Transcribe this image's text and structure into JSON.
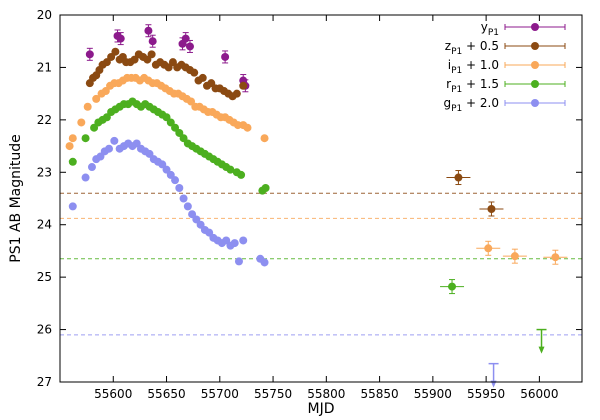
{
  "chart_data": {
    "type": "scatter",
    "xlabel": "MJD",
    "ylabel": "PS1 AB Magnitude",
    "xlim": [
      55550,
      56040
    ],
    "ylim": [
      27,
      20
    ],
    "xticks": [
      "55600",
      "55650",
      "55700",
      "55750",
      "55800",
      "55850",
      "55900",
      "55950",
      "56000"
    ],
    "yticks": [
      "20",
      "21",
      "22",
      "23",
      "24",
      "25",
      "26",
      "27"
    ],
    "legend_position": "top-right",
    "series": [
      {
        "name": "y_P1",
        "label_main": "y",
        "label_sub": "P1",
        "label_suffix": "",
        "color": "#8c1a8c",
        "limit_mag": null,
        "points": [
          [
            55578,
            20.75
          ],
          [
            55604,
            20.4
          ],
          [
            55607,
            20.45
          ],
          [
            55633,
            20.3
          ],
          [
            55637,
            20.5
          ],
          [
            55665,
            20.55
          ],
          [
            55668,
            20.45
          ],
          [
            55672,
            20.6
          ],
          [
            55705,
            20.8
          ],
          [
            55722,
            21.25
          ],
          [
            55724,
            21.35
          ]
        ],
        "upper_limits": []
      },
      {
        "name": "z_P1 + 0.5",
        "label_main": "z",
        "label_sub": "P1",
        "label_suffix": " + 0.5",
        "color": "#8b4a12",
        "limit_mag": 23.4,
        "points": [
          [
            55578,
            21.3
          ],
          [
            55581,
            21.2
          ],
          [
            55584,
            21.15
          ],
          [
            55587,
            21.05
          ],
          [
            55590,
            20.95
          ],
          [
            55594,
            20.9
          ],
          [
            55598,
            20.8
          ],
          [
            55602,
            20.7
          ],
          [
            55606,
            20.85
          ],
          [
            55609,
            20.8
          ],
          [
            55612,
            20.9
          ],
          [
            55616,
            20.9
          ],
          [
            55620,
            20.85
          ],
          [
            55624,
            20.75
          ],
          [
            55628,
            20.8
          ],
          [
            55632,
            20.85
          ],
          [
            55636,
            20.75
          ],
          [
            55640,
            20.95
          ],
          [
            55644,
            20.9
          ],
          [
            55648,
            20.95
          ],
          [
            55652,
            21.0
          ],
          [
            55656,
            20.9
          ],
          [
            55660,
            21.0
          ],
          [
            55664,
            20.95
          ],
          [
            55668,
            21.0
          ],
          [
            55672,
            21.05
          ],
          [
            55676,
            21.1
          ],
          [
            55680,
            21.25
          ],
          [
            55684,
            21.2
          ],
          [
            55688,
            21.35
          ],
          [
            55692,
            21.3
          ],
          [
            55696,
            21.4
          ],
          [
            55700,
            21.4
          ],
          [
            55704,
            21.45
          ],
          [
            55708,
            21.5
          ],
          [
            55712,
            21.55
          ],
          [
            55716,
            21.5
          ],
          [
            55722,
            21.35
          ],
          [
            55924,
            23.1
          ],
          [
            55955,
            23.7
          ]
        ],
        "upper_limits": []
      },
      {
        "name": "i_P1 + 1.0",
        "label_main": "i",
        "label_sub": "P1",
        "label_suffix": " + 1.0",
        "color": "#f9a85a",
        "limit_mag": 23.88,
        "points": [
          [
            55559,
            22.5
          ],
          [
            55562,
            22.35
          ],
          [
            55570,
            22.05
          ],
          [
            55576,
            21.75
          ],
          [
            55584,
            21.6
          ],
          [
            55589,
            21.5
          ],
          [
            55593,
            21.45
          ],
          [
            55597,
            21.35
          ],
          [
            55601,
            21.3
          ],
          [
            55605,
            21.3
          ],
          [
            55609,
            21.25
          ],
          [
            55613,
            21.2
          ],
          [
            55617,
            21.2
          ],
          [
            55621,
            21.2
          ],
          [
            55625,
            21.25
          ],
          [
            55629,
            21.2
          ],
          [
            55633,
            21.25
          ],
          [
            55637,
            21.3
          ],
          [
            55641,
            21.3
          ],
          [
            55645,
            21.35
          ],
          [
            55649,
            21.4
          ],
          [
            55653,
            21.45
          ],
          [
            55657,
            21.5
          ],
          [
            55661,
            21.5
          ],
          [
            55665,
            21.55
          ],
          [
            55669,
            21.6
          ],
          [
            55673,
            21.65
          ],
          [
            55677,
            21.75
          ],
          [
            55681,
            21.75
          ],
          [
            55685,
            21.8
          ],
          [
            55689,
            21.85
          ],
          [
            55693,
            21.85
          ],
          [
            55697,
            21.9
          ],
          [
            55701,
            21.95
          ],
          [
            55705,
            21.95
          ],
          [
            55709,
            22.0
          ],
          [
            55713,
            22.05
          ],
          [
            55717,
            22.1
          ],
          [
            55722,
            22.1
          ],
          [
            55726,
            22.15
          ],
          [
            55742,
            22.35
          ],
          [
            55952,
            24.45
          ],
          [
            55977,
            24.6
          ],
          [
            56015,
            24.62
          ]
        ],
        "upper_limits": []
      },
      {
        "name": "r_P1 + 1.5",
        "label_main": "r",
        "label_sub": "P1",
        "label_suffix": " + 1.5",
        "color": "#4caf1f",
        "limit_mag": 24.65,
        "points": [
          [
            55562,
            22.8
          ],
          [
            55574,
            22.35
          ],
          [
            55582,
            22.15
          ],
          [
            55586,
            22.05
          ],
          [
            55590,
            22.0
          ],
          [
            55594,
            21.95
          ],
          [
            55598,
            21.85
          ],
          [
            55602,
            21.8
          ],
          [
            55606,
            21.75
          ],
          [
            55610,
            21.7
          ],
          [
            55614,
            21.7
          ],
          [
            55618,
            21.65
          ],
          [
            55622,
            21.7
          ],
          [
            55626,
            21.75
          ],
          [
            55630,
            21.7
          ],
          [
            55634,
            21.75
          ],
          [
            55638,
            21.8
          ],
          [
            55642,
            21.85
          ],
          [
            55646,
            21.9
          ],
          [
            55650,
            21.95
          ],
          [
            55654,
            22.05
          ],
          [
            55658,
            22.15
          ],
          [
            55662,
            22.25
          ],
          [
            55666,
            22.35
          ],
          [
            55670,
            22.45
          ],
          [
            55674,
            22.5
          ],
          [
            55678,
            22.55
          ],
          [
            55682,
            22.6
          ],
          [
            55686,
            22.65
          ],
          [
            55690,
            22.7
          ],
          [
            55694,
            22.75
          ],
          [
            55698,
            22.8
          ],
          [
            55702,
            22.85
          ],
          [
            55706,
            22.9
          ],
          [
            55710,
            22.95
          ],
          [
            55716,
            23.0
          ],
          [
            55720,
            23.05
          ],
          [
            55740,
            23.35
          ],
          [
            55743,
            23.3
          ],
          [
            55918,
            25.18
          ]
        ],
        "upper_limits": [
          [
            56002,
            26.0
          ]
        ]
      },
      {
        "name": "g_P1 + 2.0",
        "label_main": "g",
        "label_sub": "P1",
        "label_suffix": " + 2.0",
        "color": "#8d8ff0",
        "limit_mag": 26.1,
        "points": [
          [
            55562,
            23.65
          ],
          [
            55574,
            23.1
          ],
          [
            55580,
            22.9
          ],
          [
            55584,
            22.75
          ],
          [
            55588,
            22.7
          ],
          [
            55592,
            22.6
          ],
          [
            55596,
            22.55
          ],
          [
            55601,
            22.4
          ],
          [
            55606,
            22.55
          ],
          [
            55610,
            22.5
          ],
          [
            55614,
            22.45
          ],
          [
            55618,
            22.5
          ],
          [
            55622,
            22.45
          ],
          [
            55626,
            22.55
          ],
          [
            55630,
            22.6
          ],
          [
            55634,
            22.65
          ],
          [
            55638,
            22.75
          ],
          [
            55642,
            22.8
          ],
          [
            55646,
            22.85
          ],
          [
            55650,
            22.95
          ],
          [
            55654,
            23.05
          ],
          [
            55658,
            23.15
          ],
          [
            55662,
            23.3
          ],
          [
            55666,
            23.5
          ],
          [
            55670,
            23.65
          ],
          [
            55674,
            23.8
          ],
          [
            55678,
            23.9
          ],
          [
            55682,
            24.0
          ],
          [
            55686,
            24.1
          ],
          [
            55690,
            24.15
          ],
          [
            55694,
            24.25
          ],
          [
            55698,
            24.3
          ],
          [
            55702,
            24.35
          ],
          [
            55706,
            24.3
          ],
          [
            55710,
            24.4
          ],
          [
            55714,
            24.35
          ],
          [
            55718,
            24.7
          ],
          [
            55722,
            24.3
          ],
          [
            55738,
            24.65
          ],
          [
            55742,
            24.72
          ]
        ],
        "upper_limits": [
          [
            55957,
            26.65
          ]
        ]
      }
    ]
  }
}
